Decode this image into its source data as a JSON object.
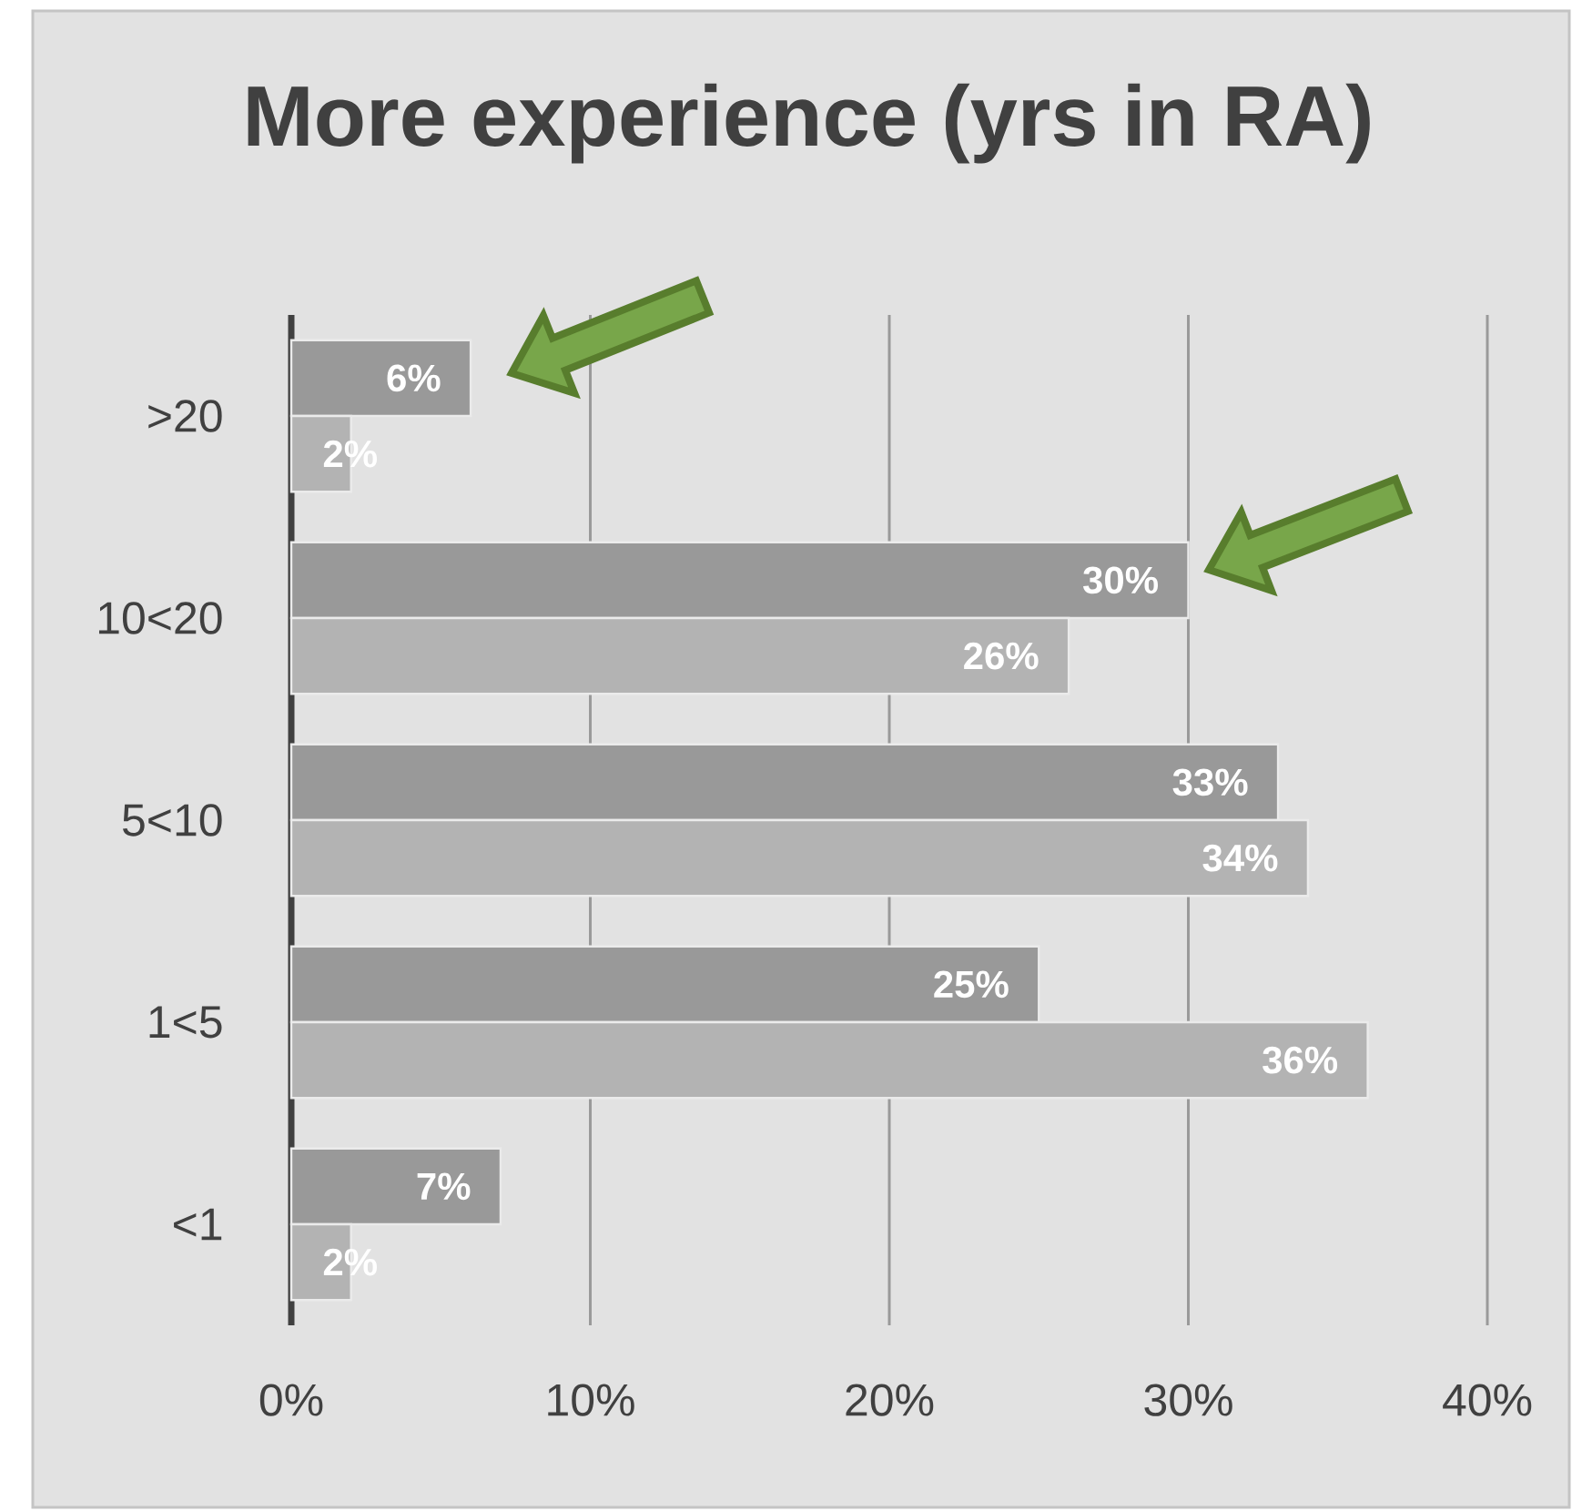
{
  "chart_data": {
    "type": "bar",
    "orientation": "horizontal",
    "title": "More experience (yrs in RA)",
    "categories": [
      ">20",
      "10<20",
      "5<10",
      "1<5",
      "<1"
    ],
    "series": [
      {
        "color": "#999999",
        "values": [
          6,
          30,
          33,
          25,
          7
        ],
        "value_labels": [
          "6%",
          "30%",
          "33%",
          "25%",
          "7%"
        ]
      },
      {
        "color": "#b3b3b3",
        "values": [
          2,
          26,
          34,
          36,
          2
        ],
        "value_labels": [
          "2%",
          "26%",
          "34%",
          "36%",
          "2%"
        ]
      }
    ],
    "xlim": [
      0,
      40
    ],
    "xticks": [
      {
        "value": 0,
        "label": "0%"
      },
      {
        "value": 10,
        "label": "10%"
      },
      {
        "value": 20,
        "label": "20%"
      },
      {
        "value": 30,
        "label": "30%"
      },
      {
        "value": 40,
        "label": "40%"
      }
    ],
    "grid": "x"
  }
}
